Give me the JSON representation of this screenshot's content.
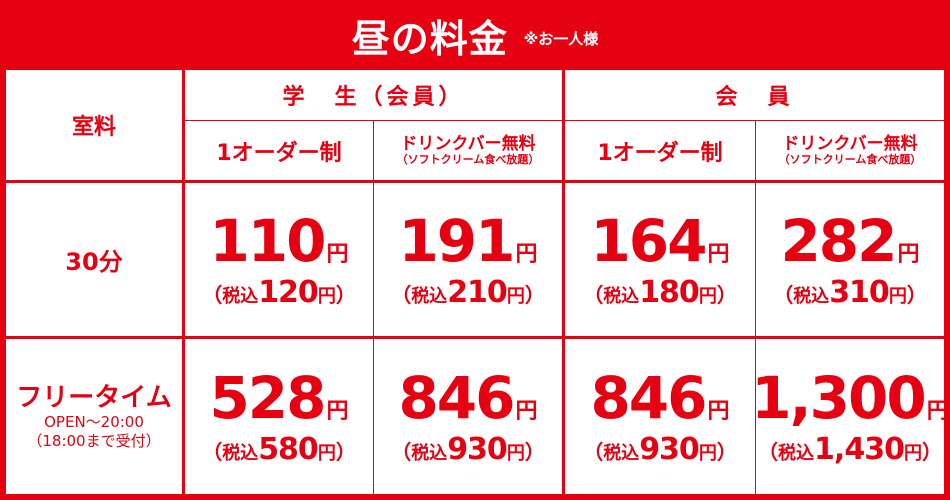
{
  "title": {
    "main": "昼の料金",
    "note": "※お一人様"
  },
  "headers": {
    "room_label": "室料",
    "group_student": "学　生（会員）",
    "group_member": "会　員",
    "sub_order": "1オーダー制",
    "sub_drinkbar": "ドリンクバー無料",
    "sub_drinkbar_note": "（ソフトクリーム食べ放題）"
  },
  "rows": [
    {
      "label": "30分",
      "sub1": "",
      "sub2": "",
      "prices": [
        {
          "price": "110",
          "yen": "円",
          "tax_open": "（",
          "tax_label": "税込",
          "tax_price": "120",
          "tax_yen": "円",
          "tax_close": "）"
        },
        {
          "price": "191",
          "yen": "円",
          "tax_open": "（",
          "tax_label": "税込",
          "tax_price": "210",
          "tax_yen": "円",
          "tax_close": "）"
        },
        {
          "price": "164",
          "yen": "円",
          "tax_open": "（",
          "tax_label": "税込",
          "tax_price": "180",
          "tax_yen": "円",
          "tax_close": "）"
        },
        {
          "price": "282",
          "yen": "円",
          "tax_open": "（",
          "tax_label": "税込",
          "tax_price": "310",
          "tax_yen": "円",
          "tax_close": "）"
        }
      ]
    },
    {
      "label": "フリータイム",
      "sub1": "OPEN～20:00",
      "sub2": "（18:00まで受付）",
      "prices": [
        {
          "price": "528",
          "yen": "円",
          "tax_open": "（",
          "tax_label": "税込",
          "tax_price": "580",
          "tax_yen": "円",
          "tax_close": "）"
        },
        {
          "price": "846",
          "yen": "円",
          "tax_open": "（",
          "tax_label": "税込",
          "tax_price": "930",
          "tax_yen": "円",
          "tax_close": "）"
        },
        {
          "price": "846",
          "yen": "円",
          "tax_open": "（",
          "tax_label": "税込",
          "tax_price": "930",
          "tax_yen": "円",
          "tax_close": "）"
        },
        {
          "price": "1,300",
          "yen": "円",
          "tax_open": "（",
          "tax_label": "税込",
          "tax_price": "1,430",
          "tax_yen": "円",
          "tax_close": "）"
        }
      ]
    }
  ],
  "colors": {
    "brand_red": "#e50012",
    "background": "#ffffff"
  }
}
